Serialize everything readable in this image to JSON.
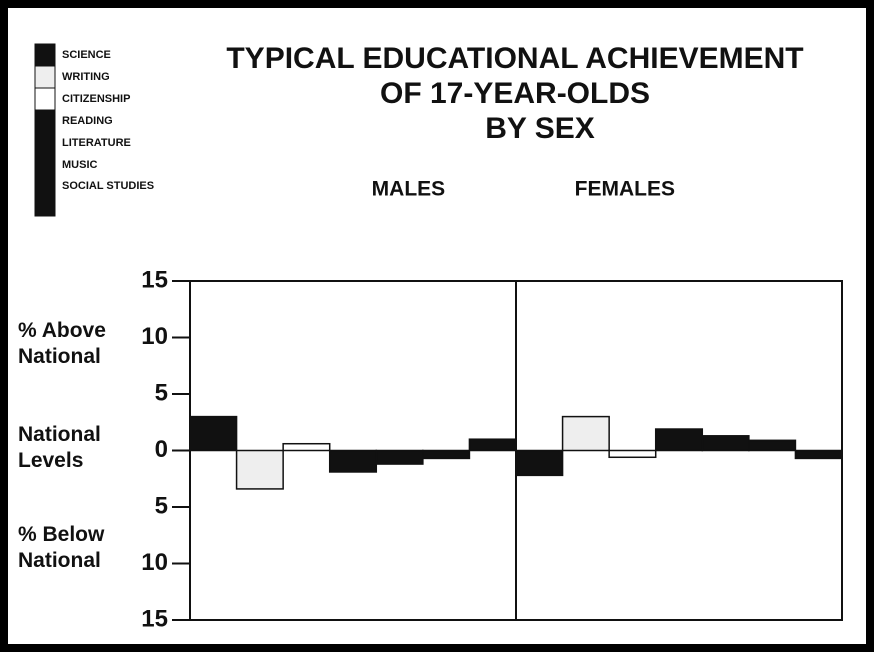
{
  "chart_data": {
    "type": "bar",
    "title_lines": [
      "TYPICAL EDUCATIONAL ACHIEVEMENT",
      "OF 17-YEAR-OLDS",
      "BY SEX"
    ],
    "categories": [
      "MALES",
      "FEMALES"
    ],
    "axis_labels": [
      "% Above National",
      "National Levels",
      "% Below National"
    ],
    "series": [
      {
        "name": "SCIENCE",
        "color": "#111111",
        "values": [
          3.0,
          -2.2
        ]
      },
      {
        "name": "WRITING",
        "color": "#eeeeee",
        "values": [
          -3.4,
          3.0
        ]
      },
      {
        "name": "CITIZENSHIP",
        "color": "#ffffff",
        "values": [
          0.6,
          -0.6
        ]
      },
      {
        "name": "READING",
        "color": "#111111",
        "values": [
          -1.9,
          1.9
        ]
      },
      {
        "name": "LITERATURE",
        "color": "#111111",
        "values": [
          -1.2,
          1.3
        ]
      },
      {
        "name": "MUSIC",
        "color": "#111111",
        "values": [
          -0.7,
          0.9
        ]
      },
      {
        "name": "SOCIAL STUDIES",
        "color": "#111111",
        "values": [
          1.0,
          -0.7
        ]
      }
    ],
    "ylim": [
      -15,
      15
    ],
    "yticks": [
      {
        "value": 15,
        "label": "15"
      },
      {
        "value": 10,
        "label": "10"
      },
      {
        "value": 5,
        "label": "5"
      },
      0,
      {
        "value": -5,
        "label": "5"
      },
      {
        "value": -10,
        "label": "10"
      },
      {
        "value": -15,
        "label": "15"
      }
    ],
    "grid": false
  }
}
